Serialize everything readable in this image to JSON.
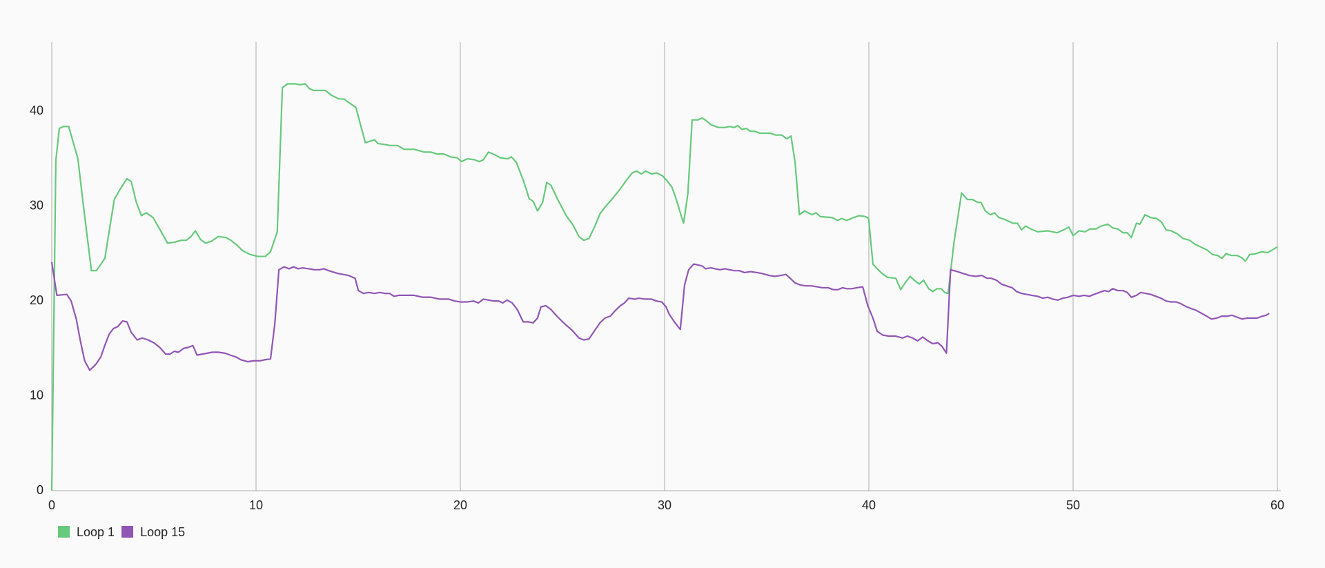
{
  "chart_data": {
    "type": "line",
    "grid": "x",
    "legend": "bottom-left",
    "xlim": [
      0,
      60
    ],
    "xticks": [
      0,
      10,
      20,
      30,
      40,
      50,
      60
    ],
    "ylim": [
      0,
      47.3
    ],
    "yticks": [
      0,
      10,
      20,
      30,
      40
    ],
    "series": [
      {
        "name": "Loop 1",
        "color": "#66c97b",
        "x": [
          0,
          0.2,
          0.37,
          0.58,
          0.83,
          1.28,
          1.53,
          1.94,
          2.19,
          2.6,
          2.77,
          3.06,
          3.35,
          3.68,
          3.89,
          4.14,
          4.39,
          4.63,
          4.96,
          5.33,
          5.67,
          6.0,
          6.33,
          6.58,
          6.82,
          7.03,
          7.28,
          7.53,
          7.82,
          8.15,
          8.52,
          8.77,
          9.06,
          9.35,
          9.72,
          10.09,
          10.46,
          10.71,
          11.04,
          11.29,
          11.54,
          11.91,
          12.16,
          12.41,
          12.61,
          12.82,
          13.4,
          13.69,
          14.06,
          14.31,
          14.56,
          14.89,
          15.14,
          15.35,
          15.8,
          15.97,
          16.34,
          16.55,
          16.92,
          17.25,
          17.74,
          18.24,
          18.57,
          18.86,
          19.19,
          19.52,
          19.85,
          20.06,
          20.35,
          20.68,
          20.93,
          21.13,
          21.38,
          21.71,
          21.96,
          22.33,
          22.5,
          22.75,
          23.12,
          23.37,
          23.57,
          23.78,
          24.03,
          24.23,
          24.44,
          24.77,
          25.19,
          25.52,
          25.81,
          26.05,
          26.3,
          26.59,
          26.84,
          27.08,
          27.37,
          27.79,
          28.12,
          28.41,
          28.62,
          28.87,
          29.07,
          29.36,
          29.61,
          29.9,
          30.15,
          30.36,
          30.56,
          30.77,
          30.93,
          31.14,
          31.35,
          31.64,
          31.84,
          32.05,
          32.26,
          32.63,
          32.96,
          33.17,
          33.42,
          33.58,
          33.79,
          34.0,
          34.2,
          34.41,
          34.66,
          35.15,
          35.44,
          35.73,
          35.98,
          36.19,
          36.39,
          36.6,
          36.85,
          37.22,
          37.42,
          37.63,
          38.21,
          38.46,
          38.67,
          38.92,
          39.25,
          39.54,
          39.83,
          39.99,
          40.2,
          40.41,
          40.65,
          40.9,
          41.32,
          41.56,
          41.77,
          42.02,
          42.27,
          42.47,
          42.68,
          42.93,
          43.13,
          43.34,
          43.55,
          43.71,
          43.88,
          44.17,
          44.54,
          44.83,
          45.08,
          45.33,
          45.49,
          45.7,
          45.95,
          46.15,
          46.36,
          46.65,
          47.06,
          47.27,
          47.48,
          47.68,
          47.93,
          48.26,
          48.76,
          49.21,
          49.54,
          49.79,
          50.0,
          50.29,
          50.58,
          50.83,
          51.12,
          51.37,
          51.7,
          51.95,
          52.19,
          52.44,
          52.65,
          52.85,
          53.1,
          53.27,
          53.52,
          53.8,
          54.09,
          54.34,
          54.55,
          54.8,
          55.09,
          55.38,
          55.71,
          55.96,
          56.25,
          56.54,
          56.83,
          57.08,
          57.28,
          57.49,
          57.74,
          58.03,
          58.23,
          58.44,
          58.64,
          58.97,
          59.22,
          59.51,
          59.76,
          60.0
        ],
        "values": [
          0,
          34.8,
          38.2,
          38.4,
          38.4,
          35,
          30.4,
          23.2,
          23.2,
          24.5,
          26.8,
          30.7,
          31.8,
          32.9,
          32.6,
          30.4,
          29,
          29.3,
          28.8,
          27.4,
          26.1,
          26.2,
          26.4,
          26.4,
          26.8,
          27.4,
          26.5,
          26.1,
          26.3,
          26.8,
          26.7,
          26.4,
          25.9,
          25.3,
          24.9,
          24.7,
          24.7,
          25.2,
          27.3,
          42.5,
          42.9,
          42.9,
          42.8,
          42.9,
          42.4,
          42.2,
          42.2,
          41.7,
          41.3,
          41.3,
          40.9,
          40.4,
          38.4,
          36.7,
          37,
          36.6,
          36.5,
          36.4,
          36.4,
          36,
          36,
          35.7,
          35.7,
          35.5,
          35.5,
          35.2,
          35.1,
          34.7,
          35,
          34.9,
          34.7,
          34.9,
          35.7,
          35.4,
          35.1,
          35,
          35.2,
          34.6,
          32.5,
          30.8,
          30.5,
          29.5,
          30.4,
          32.5,
          32.2,
          30.7,
          29,
          28,
          26.8,
          26.4,
          26.6,
          27.9,
          29.2,
          29.9,
          30.6,
          31.7,
          32.7,
          33.5,
          33.7,
          33.4,
          33.7,
          33.4,
          33.5,
          33.2,
          32.6,
          32,
          30.8,
          29.3,
          28.2,
          31.3,
          39.1,
          39.1,
          39.3,
          39,
          38.6,
          38.3,
          38.3,
          38.4,
          38.3,
          38.5,
          38.1,
          38.2,
          37.9,
          37.9,
          37.7,
          37.7,
          37.5,
          37.5,
          37.1,
          37.4,
          34.6,
          29.1,
          29.5,
          29.1,
          29.3,
          28.9,
          28.8,
          28.5,
          28.7,
          28.5,
          28.8,
          29,
          28.9,
          28.7,
          23.9,
          23.4,
          22.9,
          22.5,
          22.4,
          21.2,
          21.9,
          22.6,
          22.1,
          21.8,
          22.2,
          21.3,
          21,
          21.3,
          21.3,
          20.9,
          20.8,
          26.2,
          31.4,
          30.7,
          30.7,
          30.4,
          30.4,
          29.5,
          29.1,
          29.3,
          28.8,
          28.6,
          28.2,
          28.2,
          27.5,
          27.9,
          27.6,
          27.3,
          27.4,
          27.2,
          27.5,
          27.8,
          26.9,
          27.4,
          27.3,
          27.6,
          27.6,
          27.9,
          28.1,
          27.7,
          27.6,
          27.2,
          27.2,
          26.7,
          28.2,
          28.1,
          29.1,
          28.8,
          28.7,
          28.3,
          27.5,
          27.4,
          27.1,
          26.6,
          26.4,
          26,
          25.7,
          25.4,
          24.9,
          24.8,
          24.5,
          25,
          24.8,
          24.8,
          24.6,
          24.2,
          24.9,
          25,
          25.2,
          25.1,
          25.4,
          25.7
        ]
      },
      {
        "name": "Loop 15",
        "color": "#9155b5",
        "x": [
          0,
          0.25,
          0.74,
          0.95,
          1.2,
          1.41,
          1.61,
          1.86,
          2.15,
          2.4,
          2.61,
          2.81,
          3.02,
          3.23,
          3.47,
          3.68,
          3.89,
          4.18,
          4.43,
          4.71,
          5.0,
          5.29,
          5.58,
          5.79,
          6.0,
          6.2,
          6.45,
          6.66,
          6.91,
          7.11,
          7.36,
          7.61,
          7.86,
          8.15,
          8.48,
          8.73,
          9.02,
          9.26,
          9.59,
          9.88,
          10.21,
          10.42,
          10.71,
          10.92,
          11.12,
          11.37,
          11.62,
          11.83,
          12.07,
          12.28,
          12.57,
          12.86,
          13.11,
          13.32,
          13.56,
          14.02,
          14.52,
          14.85,
          15.01,
          15.26,
          15.51,
          15.8,
          16.05,
          16.34,
          16.54,
          16.75,
          17.0,
          17.74,
          18.16,
          18.57,
          18.98,
          19.44,
          19.73,
          20.02,
          20.35,
          20.64,
          20.89,
          21.13,
          21.38,
          21.63,
          21.88,
          22.08,
          22.29,
          22.54,
          22.79,
          23.08,
          23.33,
          23.57,
          23.78,
          23.95,
          24.19,
          24.44,
          24.73,
          25.06,
          25.48,
          25.81,
          26.05,
          26.3,
          26.55,
          26.84,
          27.08,
          27.34,
          27.59,
          27.83,
          28.04,
          28.25,
          28.54,
          28.74,
          29.03,
          29.36,
          29.61,
          29.86,
          30.07,
          30.23,
          30.48,
          30.77,
          30.98,
          31.18,
          31.43,
          31.64,
          31.84,
          32.01,
          32.26,
          32.47,
          32.71,
          32.96,
          33.17,
          33.42,
          33.66,
          33.91,
          34.2,
          34.53,
          34.78,
          35.11,
          35.4,
          35.69,
          35.94,
          36.15,
          36.39,
          36.64,
          36.89,
          37.18,
          37.47,
          37.72,
          38.01,
          38.26,
          38.5,
          38.71,
          38.92,
          39.16,
          39.41,
          39.7,
          39.95,
          40.2,
          40.41,
          40.69,
          40.98,
          41.32,
          41.65,
          41.89,
          42.14,
          42.39,
          42.64,
          42.89,
          43.13,
          43.38,
          43.59,
          43.8,
          44.0,
          44.34,
          44.62,
          44.91,
          45.24,
          45.53,
          45.78,
          45.99,
          46.24,
          46.48,
          46.73,
          47.02,
          47.23,
          47.48,
          47.73,
          47.97,
          48.26,
          48.51,
          48.76,
          49.01,
          49.26,
          49.5,
          49.75,
          50.0,
          50.29,
          50.54,
          50.79,
          51.03,
          51.28,
          51.53,
          51.74,
          51.94,
          52.19,
          52.44,
          52.65,
          52.85,
          53.1,
          53.31,
          53.56,
          53.8,
          54.05,
          54.3,
          54.55,
          54.8,
          55.05,
          55.29,
          55.54,
          55.79,
          56.04,
          56.29,
          56.54,
          56.78,
          57.03,
          57.28,
          57.53,
          57.77,
          58.02,
          58.27,
          58.52,
          58.77,
          59.01,
          59.26,
          59.45,
          59.6
        ],
        "values": [
          24.1,
          20.6,
          20.7,
          20,
          18.1,
          15.7,
          13.7,
          12.7,
          13.3,
          14.1,
          15.4,
          16.5,
          17.1,
          17.3,
          17.9,
          17.8,
          16.7,
          15.9,
          16.1,
          15.9,
          15.6,
          15.1,
          14.4,
          14.4,
          14.7,
          14.6,
          15,
          15.1,
          15.3,
          14.3,
          14.4,
          14.5,
          14.6,
          14.6,
          14.5,
          14.3,
          14.1,
          13.8,
          13.6,
          13.7,
          13.7,
          13.8,
          13.9,
          17.6,
          23.3,
          23.6,
          23.4,
          23.6,
          23.4,
          23.5,
          23.4,
          23.3,
          23.3,
          23.4,
          23.2,
          22.9,
          22.7,
          22.4,
          21.1,
          20.8,
          20.9,
          20.8,
          20.9,
          20.8,
          20.8,
          20.5,
          20.6,
          20.6,
          20.4,
          20.4,
          20.2,
          20.2,
          20,
          19.9,
          19.9,
          20,
          19.8,
          20.2,
          20.1,
          20,
          20,
          19.8,
          20.1,
          19.8,
          19.1,
          17.8,
          17.8,
          17.7,
          18.2,
          19.4,
          19.5,
          19.1,
          18.4,
          17.7,
          16.9,
          16.1,
          15.9,
          16,
          16.8,
          17.7,
          18.2,
          18.4,
          19,
          19.5,
          19.8,
          20.3,
          20.2,
          20.3,
          20.2,
          20.2,
          20,
          19.9,
          19.4,
          18.6,
          17.8,
          17,
          21.7,
          23.3,
          23.9,
          23.8,
          23.7,
          23.4,
          23.5,
          23.4,
          23.3,
          23.4,
          23.3,
          23.2,
          23.2,
          23,
          23.1,
          23,
          22.9,
          22.7,
          22.6,
          22.7,
          22.8,
          22.4,
          21.9,
          21.7,
          21.6,
          21.6,
          21.5,
          21.4,
          21.4,
          21.2,
          21.2,
          21.4,
          21.3,
          21.3,
          21.4,
          21.5,
          19.5,
          18.2,
          16.8,
          16.4,
          16.3,
          16.3,
          16.1,
          16.3,
          16.1,
          15.8,
          16.2,
          15.8,
          15.5,
          15.6,
          15.2,
          14.5,
          23.3,
          23.1,
          22.9,
          22.7,
          22.6,
          22.7,
          22.4,
          22.4,
          22.2,
          21.8,
          21.6,
          21.4,
          21,
          20.8,
          20.7,
          20.6,
          20.5,
          20.3,
          20.4,
          20.2,
          20.1,
          20.3,
          20.4,
          20.6,
          20.5,
          20.6,
          20.5,
          20.7,
          20.9,
          21.1,
          21,
          21.3,
          21.1,
          21.1,
          20.9,
          20.4,
          20.6,
          20.9,
          20.8,
          20.7,
          20.5,
          20.3,
          20,
          19.9,
          19.9,
          19.7,
          19.4,
          19.2,
          19,
          18.7,
          18.4,
          18.1,
          18.2,
          18.4,
          18.4,
          18.5,
          18.3,
          18.1,
          18.2,
          18.2,
          18.2,
          18.4,
          18.5,
          18.7
        ]
      }
    ]
  }
}
